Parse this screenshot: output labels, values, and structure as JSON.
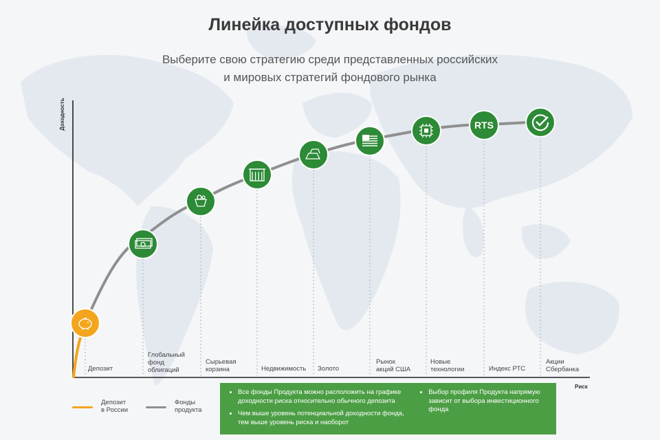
{
  "header": {
    "title": "Линейка доступных фондов",
    "subtitle_line1": "Выберите свою стратегию среди представленных российских",
    "subtitle_line2": "и мировых стратегий фондового рынка"
  },
  "axes": {
    "y_label": "Доходность",
    "x_label": "Риск"
  },
  "colors": {
    "green": "#2d8a36",
    "orange": "#f3a51d",
    "curve_gray": "#8f8f8f",
    "infobox_green": "#4c9e45"
  },
  "chart_data": {
    "type": "line",
    "categories": [
      {
        "label": "Депозит",
        "icon": "piggy-bank-icon",
        "series": "Депозит в России"
      },
      {
        "label": "Глобальный фонд облигаций",
        "icon": "banknotes-icon",
        "series": "Фонды продукта"
      },
      {
        "label": "Сырьевая корзина",
        "icon": "commodity-basket-icon",
        "series": "Фонды продукта"
      },
      {
        "label": "Недвижимость",
        "icon": "building-icon",
        "series": "Фонды продукта"
      },
      {
        "label": "Золото",
        "icon": "gold-bars-icon",
        "series": "Фонды продукта"
      },
      {
        "label": "Рынок акций США",
        "icon": "us-flag-icon",
        "series": "Фонды продукта"
      },
      {
        "label": "Новые технологии",
        "icon": "microchip-icon",
        "series": "Фонды продукта"
      },
      {
        "label": "Индекс РТС",
        "icon": "rts-logo-icon",
        "icon_text": "RTS",
        "series": "Фонды продукта"
      },
      {
        "label": "Акции Сбербанка",
        "icon": "sberbank-logo-icon",
        "series": "Фонды продукта"
      }
    ],
    "legend": [
      {
        "name": "Депозит в России",
        "color": "#f3a51d"
      },
      {
        "name": "Фонды продукта",
        "color": "#8f8f8f"
      }
    ],
    "grid": false
  },
  "label_lines": {
    "0": [
      "Депозит"
    ],
    "1": [
      "Глобальный",
      "фонд",
      "облигаций"
    ],
    "2": [
      "Сырьевая",
      "корзина"
    ],
    "3": [
      "Недвижимость"
    ],
    "4": [
      "Золото"
    ],
    "5": [
      "Рынок",
      "акций США"
    ],
    "6": [
      "Новые",
      "технологии"
    ],
    "7": [
      "Индекс РТС"
    ],
    "8": [
      "Акции",
      "Сбербанка"
    ]
  },
  "legend_text": {
    "deposit": "Депозит\nв России",
    "funds": "Фонды\nпродукта"
  },
  "infobox": {
    "bullet1": "Все фонды Продукта можно расположить на графике доходности риска относительно обычного депозита",
    "bullet2": "Чем выше уровень потенциальной доходности фонда, тем выше уровень риска и наоборот",
    "bullet3": "Выбор профиля Продукта напрямую зависит от выбора инвестиционного фонда"
  }
}
